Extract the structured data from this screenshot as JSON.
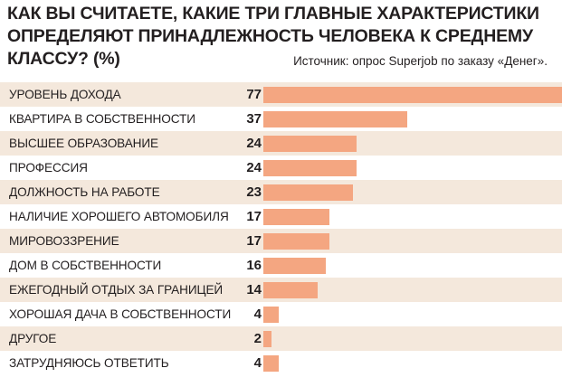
{
  "title": "КАК ВЫ СЧИТАЕТЕ, КАКИЕ ТРИ ГЛАВНЫЕ ХАРАКТЕРИСТИКИ ОПРЕДЕЛЯЮТ ПРИНАДЛЕЖНОСТЬ ЧЕЛОВЕКА К СРЕДНЕМУ КЛАССУ? (%)",
  "source": "Источник: опрос Superjob по заказу «Денег».",
  "colors": {
    "bar": "#f4a681",
    "row_shade": "#f4e8dc"
  },
  "chart_data": {
    "type": "bar",
    "orientation": "horizontal",
    "title": "КАК ВЫ СЧИТАЕТЕ, КАКИЕ ТРИ ГЛАВНЫЕ ХАРАКТЕРИСТИКИ ОПРЕДЕЛЯЮТ ПРИНАДЛЕЖНОСТЬ ЧЕЛОВЕКА К СРЕДНЕМУ КЛАССУ? (%)",
    "categories": [
      "Уровень дохода",
      "Квартира в собственности",
      "Высшее образование",
      "Профессия",
      "Должность на работе",
      "Наличие хорошего автомобиля",
      "Мировоззрение",
      "Дом в собственности",
      "Ежегодный отдых за границей",
      "Хорошая дача в собственности",
      "Другое",
      "Затрудняюсь ответить"
    ],
    "values": [
      77,
      37,
      24,
      24,
      23,
      17,
      17,
      16,
      14,
      4,
      2,
      4
    ],
    "xlim": [
      0,
      77
    ],
    "grid": false,
    "legend": "none"
  }
}
